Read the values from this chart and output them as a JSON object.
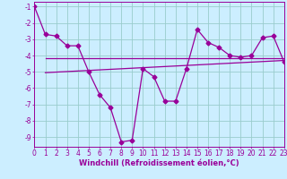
{
  "x": [
    0,
    1,
    2,
    3,
    4,
    5,
    6,
    7,
    8,
    9,
    10,
    11,
    12,
    13,
    14,
    15,
    16,
    17,
    18,
    19,
    20,
    21,
    22,
    23
  ],
  "y_main": [
    -1.0,
    -2.7,
    -2.8,
    -3.4,
    -3.4,
    -5.0,
    -6.4,
    -7.2,
    -9.3,
    -9.2,
    -4.8,
    -5.3,
    -6.8,
    -6.8,
    -4.8,
    -2.4,
    -3.2,
    -3.5,
    -4.0,
    -4.1,
    -4.0,
    -2.9,
    -2.8,
    -4.4
  ],
  "flat_line_x": [
    1,
    23
  ],
  "flat_line_y": [
    -4.15,
    -4.15
  ],
  "regr_line_x": [
    1,
    23
  ],
  "regr_line_y": [
    -5.05,
    -4.3
  ],
  "bg_color": "#cceeff",
  "grid_color": "#99cccc",
  "line_color": "#990099",
  "marker": "D",
  "marker_size": 2.5,
  "xlabel": "Windchill (Refroidissement éolien,°C)",
  "xlim": [
    0,
    23
  ],
  "ylim": [
    -9.6,
    -0.7
  ],
  "yticks": [
    -1,
    -2,
    -3,
    -4,
    -5,
    -6,
    -7,
    -8,
    -9
  ],
  "label_fontsize": 6,
  "tick_fontsize": 5.5
}
